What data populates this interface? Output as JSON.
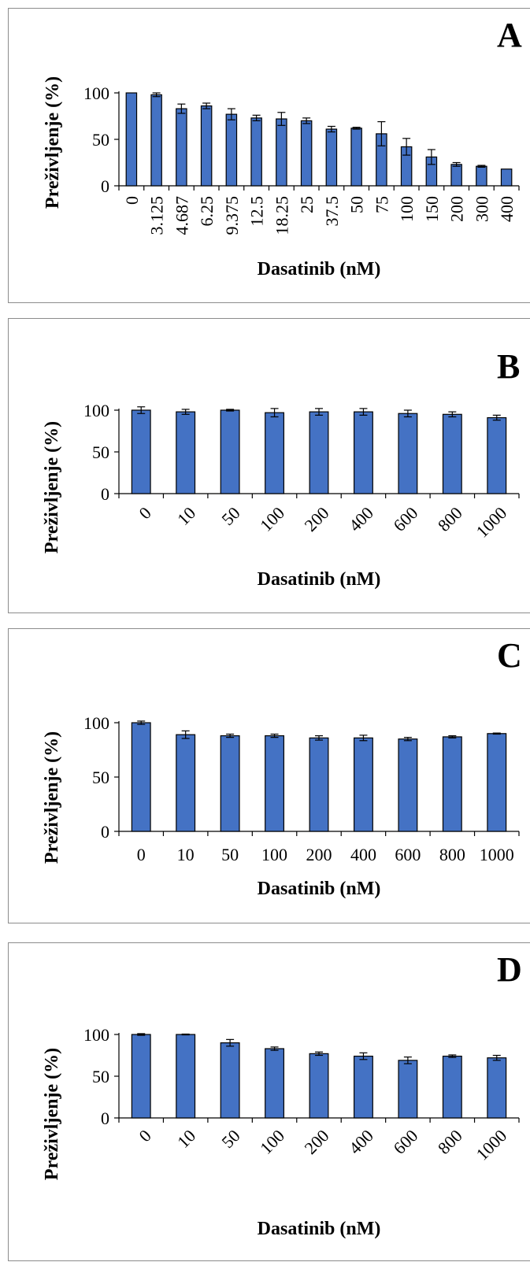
{
  "chart_data": [
    {
      "type": "bar",
      "panel": "A",
      "xlabel": "Dasatinib (nM)",
      "ylabel": "Preživljenje (%)",
      "ylim": [
        0,
        100
      ],
      "yticks": [
        "0",
        "50",
        "100"
      ],
      "tick_rotation": "vertical",
      "categories": [
        "0",
        "3.125",
        "4.687",
        "6.25",
        "9.375",
        "12.5",
        "18.25",
        "25",
        "37.5",
        "50",
        "75",
        "100",
        "150",
        "200",
        "300",
        "400"
      ],
      "values": [
        100,
        98,
        83,
        86,
        77,
        73,
        72,
        70,
        61,
        62,
        56,
        42,
        31,
        23,
        21,
        18
      ],
      "errors": [
        0,
        2,
        5,
        3,
        6,
        3,
        7,
        3,
        3,
        1,
        13,
        9,
        8,
        2,
        1,
        0
      ],
      "bar_color": "#4472c4"
    },
    {
      "type": "bar",
      "panel": "B",
      "xlabel": "Dasatinib (nM)",
      "ylabel": "Preživljenje (%)",
      "ylim": [
        0,
        100
      ],
      "yticks": [
        "0",
        "50",
        "100"
      ],
      "tick_rotation": "diagonal",
      "categories": [
        "0",
        "10",
        "50",
        "100",
        "200",
        "400",
        "600",
        "800",
        "1000"
      ],
      "values": [
        100,
        98,
        100,
        97,
        98,
        98,
        96,
        95,
        91
      ],
      "errors": [
        4,
        3,
        1,
        5,
        4,
        4,
        4,
        3,
        3
      ],
      "bar_color": "#4472c4"
    },
    {
      "type": "bar",
      "panel": "C",
      "xlabel": "Dasatinib (nM)",
      "ylabel": "Preživljenje (%)",
      "ylim": [
        0,
        100
      ],
      "yticks": [
        "0",
        "50",
        "100"
      ],
      "tick_rotation": "horizontal",
      "categories": [
        "0",
        "10",
        "50",
        "100",
        "200",
        "400",
        "600",
        "800",
        "1000"
      ],
      "values": [
        100,
        89,
        88,
        88,
        86,
        86,
        85,
        87,
        90
      ],
      "errors": [
        1.5,
        3.5,
        1.5,
        1.5,
        2,
        2.5,
        1.5,
        1,
        0.5
      ],
      "bar_color": "#4472c4"
    },
    {
      "type": "bar",
      "panel": "D",
      "xlabel": "Dasatinib (nM)",
      "ylabel": "Preživljenje (%)",
      "ylim": [
        0,
        100
      ],
      "yticks": [
        "0",
        "50",
        "100"
      ],
      "tick_rotation": "diagonal",
      "categories": [
        "0",
        "10",
        "50",
        "100",
        "200",
        "400",
        "600",
        "800",
        "1000"
      ],
      "values": [
        100,
        100,
        90,
        83,
        77,
        74,
        69,
        74,
        72
      ],
      "errors": [
        1,
        0.5,
        4,
        2,
        2,
        4,
        4,
        1.5,
        3
      ],
      "bar_color": "#4472c4"
    }
  ]
}
